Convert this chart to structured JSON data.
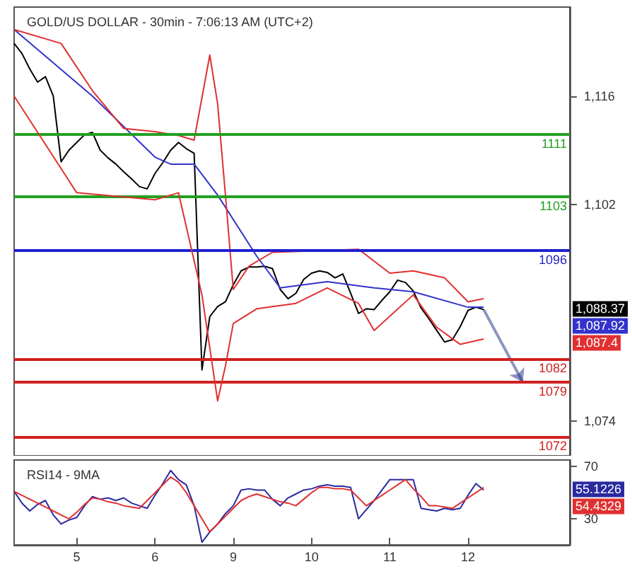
{
  "chart_data": [
    {
      "type": "line",
      "title": "GOLD/US DOLLAR - 30min - 7:06:13 AM (UTC+2)",
      "marker": "none",
      "line_style": "solid",
      "grid": false,
      "tick_labels": "y",
      "categories": [
        null,
        null,
        null,
        null,
        null,
        null,
        null,
        null,
        null,
        null,
        null,
        null,
        null,
        null,
        null,
        null,
        null,
        null,
        null,
        null,
        null,
        null,
        null,
        null,
        null,
        null,
        null,
        null,
        null,
        null,
        null,
        null,
        null,
        null,
        null,
        null,
        null,
        null,
        null,
        null,
        null,
        null,
        null,
        null,
        null,
        null,
        null,
        null,
        null,
        null,
        null,
        null,
        null,
        null,
        null,
        null,
        null,
        null,
        null,
        null,
        null,
        null,
        null,
        null,
        null,
        null,
        null,
        null,
        null,
        null,
        null,
        null
      ],
      "ylim": [
        1069.5,
        1127.5
      ],
      "yticks": [
        {
          "value": 1116,
          "label": "1,116"
        },
        {
          "value": 1102,
          "label": "1,102"
        },
        {
          "value": 1074,
          "label": "1,074"
        }
      ],
      "series": [
        {
          "color": "#000000",
          "values": [
            1122.8,
            1121.5,
            1119.5,
            1117.8,
            1118.5,
            1116,
            1107.5,
            1109,
            1110,
            1111,
            1111.3,
            1109,
            1108,
            1107.2,
            1106.2,
            1105.3,
            1104.3,
            1104,
            1106,
            1107.4,
            1109,
            1110,
            1109.2,
            1108.6,
            1080.6,
            1087.5,
            1088.8,
            1089.4,
            1091.6,
            1093.4,
            1093.9,
            1093.9,
            1094,
            1093.7,
            1091,
            1089.8,
            1090.5,
            1092.3,
            1093.1,
            1093.4,
            1093.2,
            1092.5,
            1093,
            1090.5,
            1087.9,
            1088.5,
            1088.4,
            1089.6,
            1090.7,
            1092.2,
            1091.9,
            1090.8,
            1088.6,
            1087.2,
            1085.7,
            1084.2,
            1084.5,
            1086.2,
            1088.3,
            1088.7,
            1088.4,
            null,
            null,
            null,
            null,
            null,
            null,
            null,
            null,
            null,
            null,
            null
          ]
        },
        {
          "color": "#3333cc",
          "values": [
            1124.6,
            null,
            null,
            null,
            null,
            null,
            null,
            null,
            null,
            null,
            1116,
            null,
            null,
            null,
            null,
            null,
            null,
            null,
            1108.1,
            null,
            1107.2,
            null,
            null,
            1107.2,
            null,
            null,
            1103.2,
            null,
            null,
            null,
            null,
            1095.3,
            null,
            null,
            1091.2,
            null,
            null,
            null,
            null,
            null,
            1092,
            null,
            null,
            null,
            null,
            null,
            1091.2,
            null,
            null,
            null,
            null,
            1090.7,
            null,
            null,
            null,
            null,
            null,
            null,
            1088.7,
            null,
            1088.7,
            null,
            null,
            null,
            null,
            null,
            null,
            null,
            null,
            null,
            null,
            null
          ]
        },
        {
          "color": "#e03030",
          "values": [
            1124.6,
            null,
            null,
            null,
            null,
            null,
            1122.8,
            null,
            null,
            null,
            1116.7,
            null,
            null,
            null,
            1111.8,
            null,
            null,
            null,
            1111.4,
            null,
            null,
            1110.9,
            null,
            1110.3,
            null,
            1121.3,
            1115,
            1103.2,
            1091,
            null,
            1094,
            null,
            null,
            1095.8,
            null,
            null,
            null,
            null,
            null,
            null,
            null,
            null,
            null,
            null,
            1096.2,
            null,
            null,
            null,
            1093.1,
            null,
            null,
            1093.4,
            null,
            null,
            null,
            1092.5,
            null,
            null,
            1089.4,
            null,
            1089.8,
            null,
            null,
            null,
            null,
            null,
            null,
            null,
            null,
            null,
            null,
            null
          ]
        },
        {
          "color": "#e03030",
          "values": [
            1116,
            null,
            null,
            null,
            null,
            null,
            null,
            null,
            1103.5,
            null,
            null,
            null,
            null,
            null,
            null,
            null,
            null,
            null,
            1102.6,
            null,
            null,
            1103.5,
            null,
            null,
            1090.3,
            null,
            1076.6,
            1081.1,
            1086.6,
            null,
            null,
            1088.5,
            null,
            null,
            null,
            null,
            1089.2,
            null,
            null,
            null,
            1091.2,
            null,
            null,
            null,
            1089.2,
            null,
            1085.7,
            null,
            null,
            null,
            null,
            1090.3,
            null,
            null,
            1086.1,
            null,
            null,
            1083.9,
            null,
            null,
            1084.6,
            null,
            null,
            null,
            null,
            null,
            null,
            null,
            null,
            null,
            null,
            null
          ]
        }
      ],
      "ref_lines": [
        {
          "axis": "y",
          "value": 1111,
          "label": "1111",
          "color": "#22a022"
        },
        {
          "axis": "y",
          "value": 1103,
          "label": "1103",
          "color": "#22a022"
        },
        {
          "axis": "y",
          "value": 1096,
          "label": "1096",
          "color": "#2020d0"
        },
        {
          "axis": "y",
          "value": 1082,
          "label": "1082",
          "color": "#d02020"
        },
        {
          "axis": "y",
          "value": 1079,
          "label": "1079",
          "color": "#d02020"
        },
        {
          "axis": "y",
          "value": 1072,
          "label": "1072",
          "color": "#d02020"
        }
      ],
      "annotations": [
        "1,088.37",
        "1,087.92",
        "1,087.4"
      ]
    },
    {
      "type": "line",
      "title": "RSI14 - 9MA",
      "marker": "none",
      "line_style": "solid",
      "grid": false,
      "categories": [
        null,
        null,
        null,
        null,
        null,
        null,
        null,
        null,
        "5",
        null,
        null,
        null,
        null,
        null,
        null,
        null,
        null,
        null,
        "6",
        null,
        null,
        null,
        null,
        null,
        null,
        null,
        null,
        null,
        "9",
        null,
        null,
        null,
        null,
        null,
        null,
        null,
        null,
        null,
        "10",
        null,
        null,
        null,
        null,
        null,
        null,
        null,
        null,
        null,
        "11",
        null,
        null,
        null,
        null,
        null,
        null,
        null,
        null,
        null,
        "12",
        null,
        null,
        null,
        null,
        null,
        null,
        null,
        null,
        null,
        null,
        null,
        null,
        null
      ],
      "ylim": [
        10,
        75
      ],
      "yticks": [
        30,
        70
      ],
      "series": [
        {
          "color": "#2a2aa0",
          "values": [
            51,
            42,
            36,
            41,
            44,
            33,
            26,
            29,
            31,
            40,
            47,
            45,
            46,
            44,
            46,
            42,
            40,
            38,
            48,
            57,
            67,
            60,
            56,
            40,
            12,
            20,
            26,
            34,
            40,
            52,
            53,
            52,
            52,
            45,
            40,
            46,
            49,
            52,
            53,
            55,
            56,
            55,
            55,
            54,
            30,
            37,
            44,
            52,
            60,
            60,
            60,
            60,
            38,
            37,
            36,
            38,
            37,
            38,
            48,
            57,
            52,
            null,
            null,
            null,
            null,
            null,
            null,
            null,
            null,
            null,
            null,
            null
          ]
        },
        {
          "color": "#e03030",
          "values": [
            51,
            48,
            45,
            42,
            39,
            36,
            33,
            30,
            35,
            41,
            46,
            45,
            43,
            42,
            40,
            39,
            38,
            44,
            50,
            56,
            62,
            58,
            50,
            40,
            30,
            20,
            26,
            32,
            38,
            44,
            47,
            49,
            47,
            45,
            43,
            42,
            40,
            45,
            50,
            54,
            54,
            53,
            53,
            52,
            46,
            40,
            44,
            48,
            52,
            56,
            60,
            53,
            47,
            40,
            40,
            39,
            38,
            42,
            46,
            50,
            54,
            null,
            null,
            null,
            null,
            null,
            null,
            null,
            null,
            null,
            null,
            null
          ]
        }
      ],
      "annotations": [
        "55.1226",
        "54.4329"
      ]
    }
  ]
}
